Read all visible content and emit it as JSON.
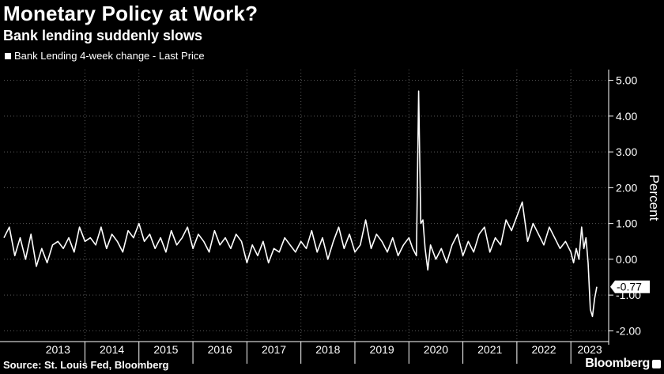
{
  "title": "Monetary Policy at Work?",
  "subtitle": "Bank lending suddenly slows",
  "source": "Source: St. Louis Fed, Bloomberg",
  "brand": "Bloomberg",
  "colors": {
    "background": "#000000",
    "line": "#ffffff",
    "grid": "#5a5a5a"
  },
  "chart_data": {
    "type": "line",
    "series": [
      {
        "name": "Bank Lending 4-week change - Last Price",
        "last_value_label": "-0.77",
        "x": [
          2012.5,
          2012.6,
          2012.7,
          2012.8,
          2012.9,
          2013.0,
          2013.1,
          2013.2,
          2013.3,
          2013.4,
          2013.5,
          2013.6,
          2013.7,
          2013.8,
          2013.9,
          2014.0,
          2014.1,
          2014.2,
          2014.3,
          2014.4,
          2014.5,
          2014.6,
          2014.7,
          2014.8,
          2014.9,
          2015.0,
          2015.1,
          2015.2,
          2015.3,
          2015.4,
          2015.5,
          2015.6,
          2015.7,
          2015.8,
          2015.9,
          2016.0,
          2016.1,
          2016.2,
          2016.3,
          2016.4,
          2016.5,
          2016.6,
          2016.7,
          2016.8,
          2016.9,
          2017.0,
          2017.1,
          2017.2,
          2017.3,
          2017.4,
          2017.5,
          2017.6,
          2017.7,
          2017.8,
          2017.9,
          2018.0,
          2018.1,
          2018.2,
          2018.3,
          2018.4,
          2018.5,
          2018.6,
          2018.7,
          2018.8,
          2018.9,
          2019.0,
          2019.1,
          2019.2,
          2019.3,
          2019.4,
          2019.5,
          2019.6,
          2019.7,
          2019.8,
          2019.9,
          2020.0,
          2020.07,
          2020.14,
          2020.18,
          2020.22,
          2020.26,
          2020.3,
          2020.35,
          2020.4,
          2020.5,
          2020.6,
          2020.7,
          2020.8,
          2020.9,
          2021.0,
          2021.1,
          2021.2,
          2021.3,
          2021.4,
          2021.5,
          2021.6,
          2021.7,
          2021.8,
          2021.9,
          2022.0,
          2022.1,
          2022.2,
          2022.3,
          2022.4,
          2022.5,
          2022.6,
          2022.7,
          2022.8,
          2022.9,
          2023.0,
          2023.05,
          2023.1,
          2023.15,
          2023.2,
          2023.24,
          2023.28,
          2023.32
        ],
        "y": [
          0.6,
          0.9,
          0.1,
          0.6,
          0.0,
          0.7,
          -0.2,
          0.3,
          -0.1,
          0.4,
          0.5,
          0.3,
          0.6,
          0.2,
          0.9,
          0.5,
          0.6,
          0.4,
          0.9,
          0.3,
          0.7,
          0.5,
          0.2,
          0.8,
          0.6,
          1.0,
          0.5,
          0.7,
          0.3,
          0.6,
          0.2,
          0.8,
          0.4,
          0.6,
          0.9,
          0.3,
          0.7,
          0.5,
          0.2,
          0.8,
          0.4,
          0.6,
          0.3,
          0.7,
          0.5,
          -0.1,
          0.4,
          0.1,
          0.5,
          -0.1,
          0.3,
          0.2,
          0.6,
          0.4,
          0.2,
          0.5,
          0.3,
          0.8,
          0.2,
          0.6,
          0.0,
          0.5,
          0.9,
          0.3,
          0.7,
          0.2,
          0.4,
          1.1,
          0.3,
          0.7,
          0.5,
          0.2,
          0.6,
          0.1,
          0.4,
          0.6,
          0.3,
          0.1,
          4.7,
          1.0,
          1.1,
          0.3,
          -0.3,
          0.4,
          0.0,
          0.3,
          -0.1,
          0.4,
          0.7,
          0.1,
          0.5,
          0.2,
          0.7,
          0.9,
          0.2,
          0.6,
          0.4,
          1.1,
          0.8,
          1.2,
          1.6,
          0.5,
          1.0,
          0.7,
          0.4,
          0.9,
          0.6,
          0.3,
          0.5,
          0.2,
          -0.1,
          0.3,
          0.0,
          0.9,
          0.3,
          0.6,
          -0.1
        ],
        "tail": {
          "x": [
            2023.36,
            2023.4,
            2023.44,
            2023.48
          ],
          "y": [
            -1.4,
            -1.6,
            -1.1,
            -0.77
          ]
        }
      }
    ],
    "xlabel": "",
    "ylabel": "Percent",
    "x_ticks": [
      "2013",
      "2014",
      "2015",
      "2016",
      "2017",
      "2018",
      "2019",
      "2020",
      "2021",
      "2022",
      "2023"
    ],
    "y_ticks": [
      "-2.00",
      "-1.00",
      "0.00",
      "1.00",
      "2.00",
      "3.00",
      "4.00",
      "5.00"
    ],
    "xlim": [
      2012.5,
      2023.7
    ],
    "ylim": [
      -2.3,
      5.3
    ],
    "grid": true,
    "legend": "top-left"
  }
}
